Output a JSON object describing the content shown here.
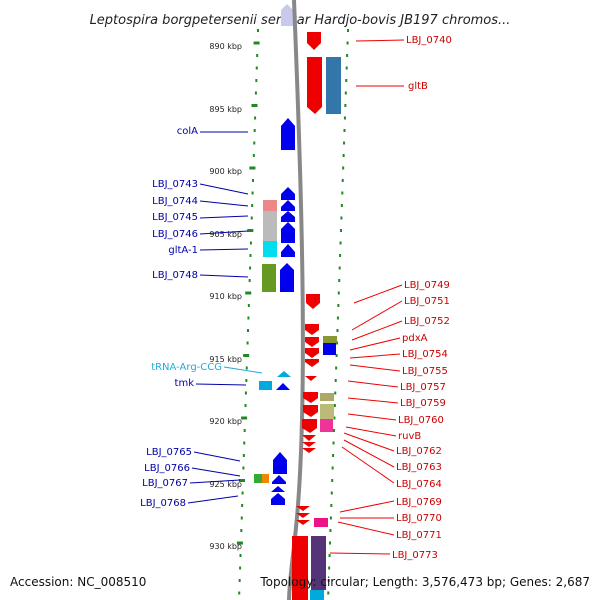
{
  "title": "Leptospira borgpetersenii serovar Hardjo-bovis JB197 chromos...",
  "accession": "Accession: NC_008510",
  "topology": "Topology: circular; Length: 3,576,473 bp; Genes: 2,687",
  "colors": {
    "forward": "#ee0000",
    "reverse": "#0000ee",
    "trna": "#00aadd",
    "backbone": "#888888",
    "ticks": "#228822"
  },
  "kbp_labels": [
    "890 kbp",
    "895 kbp",
    "900 kbp",
    "905 kbp",
    "910 kbp",
    "915 kbp",
    "920 kbp",
    "925 kbp",
    "930 kbp"
  ],
  "left_labels": [
    "colA",
    "LBJ_0743",
    "LBJ_0744",
    "LBJ_0745",
    "LBJ_0746",
    "gltA-1",
    "LBJ_0748",
    "tRNA-Arg-CCG",
    "tmk",
    "LBJ_0765",
    "LBJ_0766",
    "LBJ_0767",
    "LBJ_0768"
  ],
  "right_labels": [
    "LBJ_0740",
    "gltB",
    "LBJ_0749",
    "LBJ_0751",
    "LBJ_0752",
    "pdxA",
    "LBJ_0754",
    "LBJ_0755",
    "LBJ_0757",
    "LBJ_0759",
    "LBJ_0760",
    "ruvB",
    "LBJ_0762",
    "LBJ_0763",
    "LBJ_0764",
    "LBJ_0769",
    "LBJ_0770",
    "LBJ_0771",
    "LBJ_0773"
  ]
}
